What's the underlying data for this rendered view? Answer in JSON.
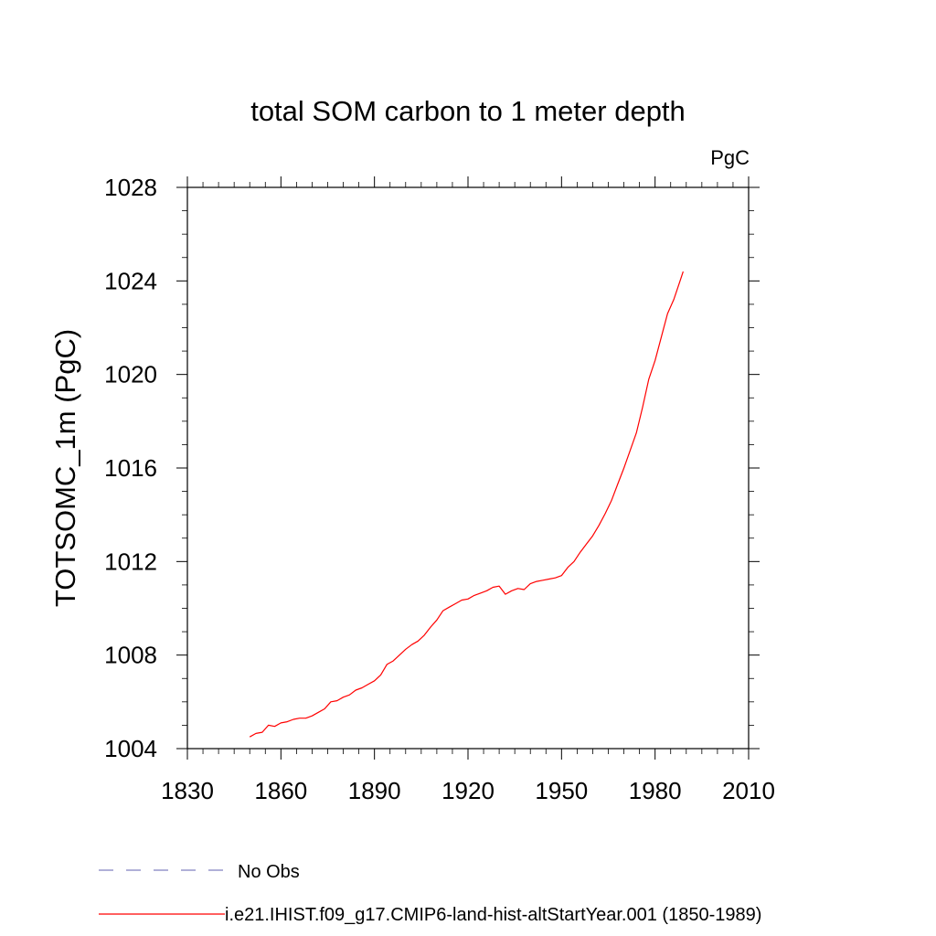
{
  "chart_data": {
    "type": "line",
    "title": "total SOM carbon to 1 meter depth",
    "units_label": "PgC",
    "ylabel": "TOTSOMC_1m  (PgC)",
    "xlabel": "",
    "xlim": [
      1830,
      2010
    ],
    "ylim": [
      1004,
      1028
    ],
    "xticks": [
      1830,
      1860,
      1890,
      1920,
      1950,
      1980,
      2010
    ],
    "yticks": [
      1004,
      1008,
      1012,
      1016,
      1020,
      1024,
      1028
    ],
    "grid": false,
    "legend_position": "bottom-left",
    "legend": [
      {
        "label": "No Obs",
        "color": "#8080c0",
        "style": "dashed"
      },
      {
        "label": "i.e21.IHIST.f09_g17.CMIP6-land-hist-altStartYear.001 (1850-1989)",
        "color": "#ff0000",
        "style": "solid"
      }
    ],
    "series": [
      {
        "name": "i.e21.IHIST.f09_g17.CMIP6-land-hist-altStartYear.001 (1850-1989)",
        "color": "#ff0000",
        "x": [
          1850,
          1852,
          1854,
          1856,
          1858,
          1860,
          1862,
          1864,
          1866,
          1868,
          1870,
          1872,
          1874,
          1876,
          1878,
          1880,
          1882,
          1884,
          1886,
          1888,
          1890,
          1892,
          1894,
          1896,
          1898,
          1900,
          1902,
          1904,
          1906,
          1908,
          1910,
          1912,
          1914,
          1916,
          1918,
          1920,
          1922,
          1924,
          1926,
          1928,
          1930,
          1932,
          1934,
          1936,
          1938,
          1940,
          1942,
          1944,
          1946,
          1948,
          1950,
          1952,
          1954,
          1956,
          1958,
          1960,
          1962,
          1964,
          1966,
          1968,
          1970,
          1972,
          1974,
          1976,
          1978,
          1980,
          1982,
          1984,
          1986,
          1988,
          1989
        ],
        "y": [
          1004.5,
          1004.65,
          1004.7,
          1005.0,
          1004.95,
          1005.1,
          1005.15,
          1005.25,
          1005.3,
          1005.3,
          1005.4,
          1005.55,
          1005.7,
          1006.0,
          1006.05,
          1006.2,
          1006.3,
          1006.5,
          1006.6,
          1006.75,
          1006.9,
          1007.15,
          1007.6,
          1007.75,
          1008.0,
          1008.25,
          1008.45,
          1008.6,
          1008.85,
          1009.2,
          1009.5,
          1009.9,
          1010.05,
          1010.2,
          1010.35,
          1010.4,
          1010.55,
          1010.65,
          1010.75,
          1010.9,
          1010.95,
          1010.6,
          1010.75,
          1010.85,
          1010.8,
          1011.05,
          1011.15,
          1011.2,
          1011.25,
          1011.3,
          1011.4,
          1011.75,
          1012.0,
          1012.4,
          1012.75,
          1013.1,
          1013.55,
          1014.05,
          1014.6,
          1015.3,
          1016.0,
          1016.75,
          1017.5,
          1018.6,
          1019.8,
          1020.6,
          1021.6,
          1022.6,
          1023.2,
          1024.0,
          1024.4
        ]
      }
    ]
  }
}
